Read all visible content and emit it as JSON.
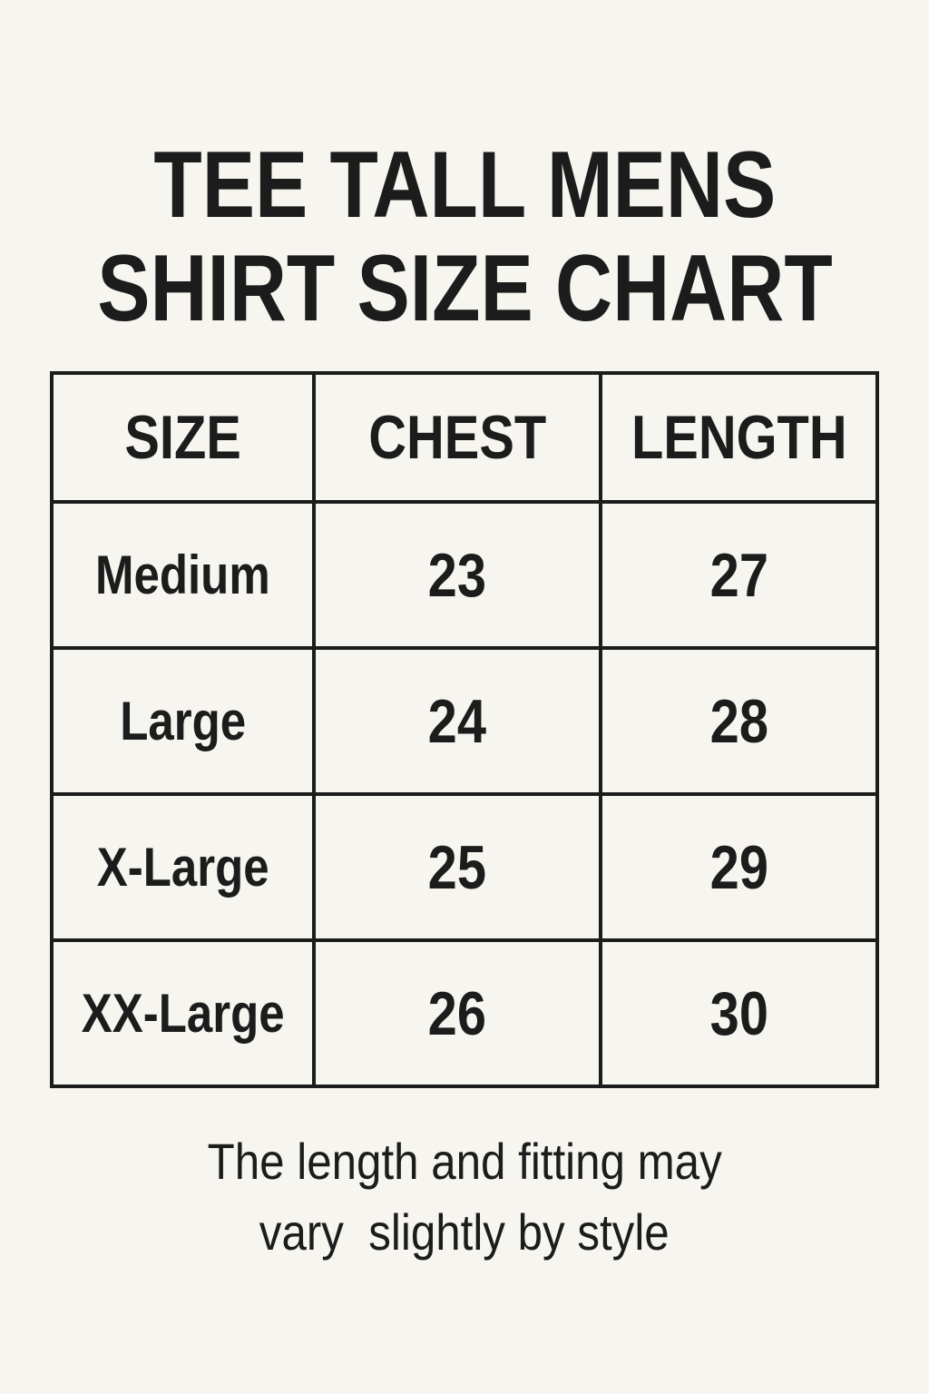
{
  "title": {
    "line1": "TEE TALL MENS",
    "line2": "SHIRT SIZE CHART"
  },
  "table": {
    "headers": [
      "SIZE",
      "CHEST",
      "LENGTH"
    ],
    "rows": [
      [
        "Medium",
        "23",
        "27"
      ],
      [
        "Large",
        "24",
        "28"
      ],
      [
        "X-Large",
        "25",
        "29"
      ],
      [
        "XX-Large",
        "26",
        "30"
      ]
    ]
  },
  "footer": {
    "line1": "The length and fitting may",
    "line2": "vary  slightly by style"
  },
  "colors": {
    "background": "#f7f5f0",
    "text": "#1c1c1c"
  }
}
